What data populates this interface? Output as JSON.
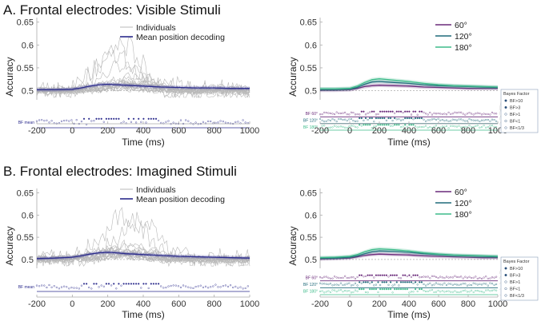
{
  "chart_data": [
    {
      "type": "line",
      "panel_title": "A. Frontal electrodes: Visible Stimuli",
      "xlabel": "Time (ms)",
      "ylabel": "Accuracy",
      "xticks": [
        -200,
        0,
        200,
        400,
        600,
        800,
        1000
      ],
      "yticks": [
        0.5,
        0.55,
        0.6,
        0.65
      ],
      "xlim": [
        -200,
        1000
      ],
      "ylim": [
        0.48,
        0.66
      ],
      "legend": [
        "Individuals",
        "Mean position decoding"
      ],
      "bf_row_labels": [
        "BF mean"
      ],
      "series": [
        {
          "name": "Mean position decoding",
          "color": "#2a2a8c",
          "x": [
            -200,
            -100,
            0,
            50,
            100,
            150,
            200,
            250,
            300,
            350,
            400,
            500,
            600,
            700,
            800,
            900,
            1000
          ],
          "y": [
            0.502,
            0.502,
            0.503,
            0.506,
            0.51,
            0.513,
            0.514,
            0.513,
            0.512,
            0.511,
            0.51,
            0.508,
            0.507,
            0.506,
            0.506,
            0.505,
            0.505
          ]
        }
      ]
    },
    {
      "type": "line",
      "xlabel": "Time (ms)",
      "ylabel": "Accuracy",
      "xticks": [
        -200,
        0,
        200,
        400,
        600,
        800,
        1000
      ],
      "yticks": [
        0.5,
        0.55,
        0.6,
        0.65
      ],
      "xlim": [
        -200,
        1000
      ],
      "ylim": [
        0.48,
        0.66
      ],
      "legend": [
        "60°",
        "120°",
        "180°"
      ],
      "bf_row_labels": [
        "BF 60°",
        "BF 120°",
        "BF 180°"
      ],
      "bayes_legend": {
        "title": "Bayes Factor",
        "items": [
          "BF>10",
          "BF>3",
          "BF>1",
          "BF<1",
          "BF<1/3"
        ]
      },
      "series": [
        {
          "name": "60°",
          "color": "#6a2a7a",
          "x": [
            -200,
            -100,
            0,
            50,
            100,
            150,
            200,
            300,
            400,
            500,
            600,
            700,
            800,
            900,
            1000
          ],
          "y": [
            0.501,
            0.501,
            0.502,
            0.505,
            0.509,
            0.511,
            0.512,
            0.511,
            0.51,
            0.508,
            0.507,
            0.506,
            0.505,
            0.505,
            0.505
          ]
        },
        {
          "name": "120°",
          "color": "#1f6a7a",
          "x": [
            -200,
            -100,
            0,
            50,
            100,
            150,
            200,
            300,
            400,
            500,
            600,
            700,
            800,
            900,
            1000
          ],
          "y": [
            0.503,
            0.503,
            0.504,
            0.507,
            0.514,
            0.519,
            0.52,
            0.518,
            0.516,
            0.513,
            0.511,
            0.51,
            0.509,
            0.508,
            0.507
          ]
        },
        {
          "name": "180°",
          "color": "#3dbb8a",
          "x": [
            -200,
            -100,
            0,
            50,
            100,
            150,
            200,
            300,
            400,
            500,
            600,
            700,
            800,
            900,
            1000
          ],
          "y": [
            0.504,
            0.504,
            0.505,
            0.51,
            0.518,
            0.524,
            0.526,
            0.523,
            0.52,
            0.516,
            0.513,
            0.511,
            0.51,
            0.509,
            0.508
          ]
        }
      ]
    },
    {
      "type": "line",
      "panel_title": "B. Frontal electrodes: Imagined Stimuli",
      "xlabel": "Time (ms)",
      "ylabel": "Accuracy",
      "xticks": [
        -200,
        0,
        200,
        400,
        600,
        800,
        1000
      ],
      "yticks": [
        0.5,
        0.55,
        0.6,
        0.65
      ],
      "xlim": [
        -200,
        1000
      ],
      "ylim": [
        0.48,
        0.66
      ],
      "legend": [
        "Individuals",
        "Mean position decoding"
      ],
      "bf_row_labels": [
        "BF mean"
      ],
      "series": [
        {
          "name": "Mean position decoding",
          "color": "#2a2a8c",
          "x": [
            -200,
            -100,
            0,
            50,
            100,
            150,
            200,
            250,
            300,
            350,
            400,
            500,
            600,
            700,
            800,
            900,
            1000
          ],
          "y": [
            0.502,
            0.503,
            0.505,
            0.508,
            0.512,
            0.515,
            0.516,
            0.515,
            0.513,
            0.512,
            0.511,
            0.509,
            0.507,
            0.506,
            0.505,
            0.504,
            0.503
          ]
        }
      ]
    },
    {
      "type": "line",
      "xlabel": "Time (ms)",
      "ylabel": "Accuracy",
      "xticks": [
        -200,
        0,
        200,
        400,
        600,
        800,
        1000
      ],
      "yticks": [
        0.5,
        0.55,
        0.6,
        0.65
      ],
      "xlim": [
        -200,
        1000
      ],
      "ylim": [
        0.48,
        0.66
      ],
      "legend": [
        "60°",
        "120°",
        "180°"
      ],
      "bf_row_labels": [
        "BF 60°",
        "BF 120°",
        "BF 180°"
      ],
      "bayes_legend": {
        "title": "Bayes Factor",
        "items": [
          "BF>10",
          "BF>3",
          "BF>1",
          "BF<1",
          "BF<1/3"
        ]
      },
      "series": [
        {
          "name": "60°",
          "color": "#6a2a7a",
          "x": [
            -200,
            -100,
            0,
            50,
            100,
            150,
            200,
            300,
            400,
            500,
            600,
            700,
            800,
            900,
            1000
          ],
          "y": [
            0.501,
            0.502,
            0.503,
            0.506,
            0.509,
            0.511,
            0.512,
            0.511,
            0.51,
            0.508,
            0.507,
            0.506,
            0.505,
            0.504,
            0.504
          ]
        },
        {
          "name": "120°",
          "color": "#1f6a7a",
          "x": [
            -200,
            -100,
            0,
            50,
            100,
            150,
            200,
            300,
            400,
            500,
            600,
            700,
            800,
            900,
            1000
          ],
          "y": [
            0.503,
            0.503,
            0.505,
            0.508,
            0.513,
            0.517,
            0.519,
            0.518,
            0.516,
            0.513,
            0.511,
            0.509,
            0.508,
            0.507,
            0.506
          ]
        },
        {
          "name": "180°",
          "color": "#3dbb8a",
          "x": [
            -200,
            -100,
            0,
            50,
            100,
            150,
            200,
            300,
            400,
            500,
            600,
            700,
            800,
            900,
            1000
          ],
          "y": [
            0.504,
            0.505,
            0.507,
            0.511,
            0.517,
            0.522,
            0.524,
            0.522,
            0.519,
            0.515,
            0.512,
            0.51,
            0.509,
            0.508,
            0.507
          ]
        }
      ]
    }
  ]
}
